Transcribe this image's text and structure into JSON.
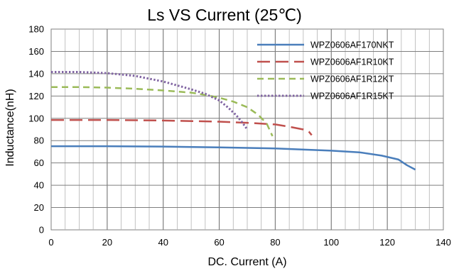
{
  "chart_data": {
    "type": "line",
    "title": "Ls  VS  Current  (25℃)",
    "xlabel": "DC. Current (A)",
    "ylabel": "Inductance(nH)",
    "xlim": [
      0,
      140
    ],
    "ylim": [
      0,
      180
    ],
    "xticks": [
      0,
      20,
      40,
      60,
      80,
      100,
      120,
      140
    ],
    "yticks": [
      0,
      20,
      40,
      60,
      80,
      100,
      120,
      140,
      160,
      180
    ],
    "x_minor_step": 5,
    "grid": true,
    "legend_position": "top-right",
    "series": [
      {
        "name": "WPZ0606AF170NKT",
        "color": "#4a7ebb",
        "dash": "solid",
        "x": [
          0,
          20,
          40,
          60,
          80,
          100,
          110,
          118,
          124,
          127,
          130
        ],
        "y": [
          75,
          75,
          74.7,
          74,
          73,
          71,
          69.5,
          66.5,
          63,
          58,
          54
        ]
      },
      {
        "name": "WPZ0606AF1R10KT",
        "color": "#c0504d",
        "dash": "long-dash",
        "x": [
          0,
          20,
          40,
          60,
          70,
          80,
          85,
          90,
          92,
          93
        ],
        "y": [
          98.5,
          98.5,
          98,
          97,
          96,
          94.5,
          92.5,
          90,
          88,
          85
        ]
      },
      {
        "name": "WPZ0606AF1R12KT",
        "color": "#9bbb59",
        "dash": "dash",
        "x": [
          0,
          10,
          20,
          30,
          40,
          50,
          55,
          60,
          65,
          70,
          74,
          77,
          79
        ],
        "y": [
          128,
          128,
          127.5,
          126.5,
          125,
          123,
          121,
          118.5,
          115,
          110,
          103,
          95,
          84
        ]
      },
      {
        "name": "WPZ0606AF1R15KT",
        "color": "#8064a2",
        "dash": "dot",
        "x": [
          0,
          10,
          20,
          30,
          40,
          50,
          55,
          60,
          63,
          66,
          68,
          70
        ],
        "y": [
          141.5,
          141.5,
          140.5,
          138,
          133,
          126,
          122,
          116,
          110,
          103,
          97,
          90
        ]
      }
    ]
  }
}
